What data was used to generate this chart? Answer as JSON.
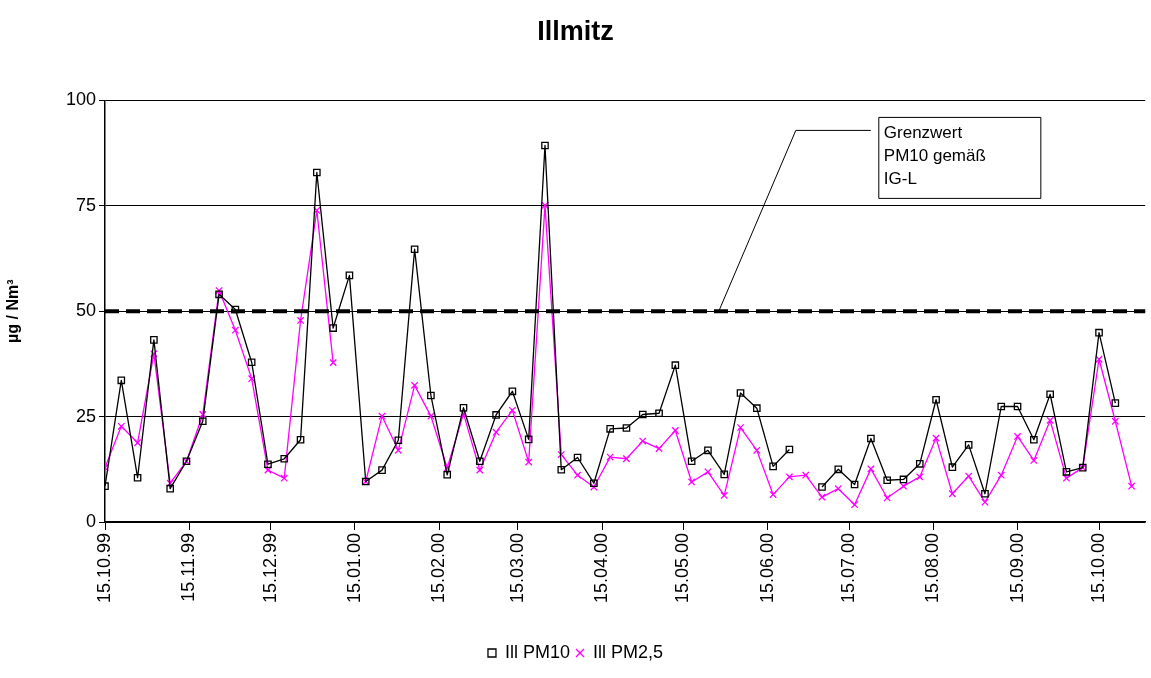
{
  "chart_data": {
    "type": "line",
    "title": "Illmitz",
    "ylabel": "µg / Nm³",
    "x": [
      "1999-10-15",
      "1999-10-21",
      "1999-10-27",
      "1999-11-02",
      "1999-11-08",
      "1999-11-14",
      "1999-11-20",
      "1999-11-26",
      "1999-12-02",
      "1999-12-08",
      "1999-12-14",
      "1999-12-20",
      "1999-12-26",
      "2000-01-01",
      "2000-01-07",
      "2000-01-13",
      "2000-01-19",
      "2000-01-25",
      "2000-01-31",
      "2000-02-06",
      "2000-02-12",
      "2000-02-18",
      "2000-02-24",
      "2000-03-01",
      "2000-03-07",
      "2000-03-13",
      "2000-03-19",
      "2000-03-25",
      "2000-03-31",
      "2000-04-06",
      "2000-04-12",
      "2000-04-18",
      "2000-04-24",
      "2000-04-30",
      "2000-05-06",
      "2000-05-12",
      "2000-05-18",
      "2000-05-24",
      "2000-05-30",
      "2000-06-05",
      "2000-06-11",
      "2000-06-17",
      "2000-06-23",
      "2000-06-29",
      "2000-07-05",
      "2000-07-11",
      "2000-07-17",
      "2000-07-23",
      "2000-07-29",
      "2000-08-04",
      "2000-08-10",
      "2000-08-16",
      "2000-08-22",
      "2000-08-28",
      "2000-09-03",
      "2000-09-09",
      "2000-09-15",
      "2000-09-21",
      "2000-09-27",
      "2000-10-03",
      "2000-10-09",
      "2000-10-15",
      "2000-10-21",
      "2000-10-27"
    ],
    "series": [
      {
        "name": "Ill PM10",
        "color": "#000000",
        "marker": "square",
        "values": [
          8.5,
          33.6,
          10.5,
          43.2,
          7.9,
          14.4,
          23.9,
          54.0,
          50.4,
          37.9,
          13.7,
          15.0,
          19.5,
          82.9,
          46.0,
          58.5,
          9.6,
          12.3,
          19.4,
          64.7,
          30.0,
          11.2,
          27.1,
          14.4,
          25.4,
          31.0,
          19.6,
          89.3,
          12.4,
          15.3,
          9.2,
          22.1,
          22.3,
          25.5,
          25.8,
          37.2,
          14.4,
          17.0,
          11.3,
          30.6,
          27.0,
          13.2,
          17.2,
          null,
          8.3,
          12.5,
          8.9,
          19.8,
          9.9,
          10.1,
          13.8,
          29.0,
          13.0,
          18.3,
          6.7,
          27.4,
          27.4,
          19.5,
          30.3,
          11.9,
          12.9,
          44.9,
          28.2,
          null
        ]
      },
      {
        "name": "Ill PM2,5",
        "color": "#ff00ff",
        "marker": "cross",
        "values": [
          12.9,
          22.7,
          18.8,
          39.9,
          9.2,
          14.4,
          25.5,
          54.9,
          45.5,
          34.0,
          12.3,
          10.4,
          47.8,
          73.9,
          37.8,
          null,
          9.6,
          25.1,
          17.0,
          32.4,
          25.1,
          12.8,
          25.7,
          12.3,
          21.3,
          26.5,
          14.2,
          75.1,
          16.0,
          11.1,
          8.3,
          15.4,
          15.0,
          19.2,
          17.4,
          21.7,
          9.5,
          11.9,
          6.3,
          22.4,
          17.0,
          6.5,
          10.7,
          11.1,
          5.9,
          7.9,
          4.1,
          12.6,
          5.7,
          8.5,
          10.7,
          19.9,
          6.7,
          10.9,
          4.7,
          11.1,
          20.3,
          14.6,
          24.1,
          10.4,
          12.9,
          38.6,
          23.9,
          8.5
        ]
      }
    ],
    "xlim": [
      "1999-10-15",
      "2000-11-01"
    ],
    "xticks": [
      {
        "value": "1999-10-15",
        "label": "15.10.99"
      },
      {
        "value": "1999-11-15",
        "label": "15.11.99"
      },
      {
        "value": "1999-12-15",
        "label": "15.12.99"
      },
      {
        "value": "2000-01-15",
        "label": "15.01.00"
      },
      {
        "value": "2000-02-15",
        "label": "15.02.00"
      },
      {
        "value": "2000-03-15",
        "label": "15.03.00"
      },
      {
        "value": "2000-04-15",
        "label": "15.04.00"
      },
      {
        "value": "2000-05-15",
        "label": "15.05.00"
      },
      {
        "value": "2000-06-15",
        "label": "15.06.00"
      },
      {
        "value": "2000-07-15",
        "label": "15.07.00"
      },
      {
        "value": "2000-08-15",
        "label": "15.08.00"
      },
      {
        "value": "2000-09-15",
        "label": "15.09.00"
      },
      {
        "value": "2000-10-15",
        "label": "15.10.00"
      }
    ],
    "ylim": [
      0,
      100
    ],
    "yticks": [
      0,
      25,
      50,
      75,
      100
    ],
    "grid": "y",
    "legend": "bottom",
    "ref_lines": [
      {
        "axis": "y",
        "value": 50,
        "color": "#000000",
        "line_style": "dashed"
      }
    ],
    "annotations": [
      {
        "text": "Grenzwert\nPM10 gemäß\nIG-L",
        "x": "2000-05-28",
        "y": 50
      }
    ]
  }
}
